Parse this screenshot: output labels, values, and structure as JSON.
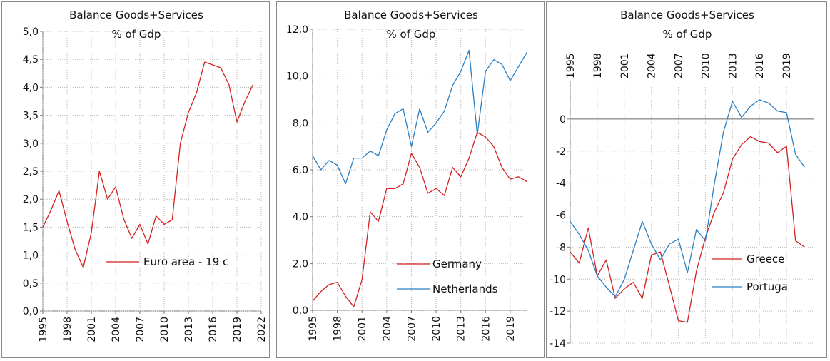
{
  "chart_data": [
    {
      "type": "line",
      "title": "Balance Goods+Services",
      "subtitle": "% of Gdp",
      "xlim": [
        1995,
        2022
      ],
      "ylim": [
        0,
        5
      ],
      "x_ticks": [
        1995,
        1998,
        2001,
        2004,
        2007,
        2010,
        2013,
        2016,
        2019,
        2022
      ],
      "y_ticks": [
        "0,0",
        "0,5",
        "1,0",
        "1,5",
        "2,0",
        "2,5",
        "3,0",
        "3,5",
        "4,0",
        "4,5",
        "5,0"
      ],
      "grid": true,
      "legend": "bottom-right",
      "x": [
        1995,
        1996,
        1997,
        1998,
        1999,
        2000,
        2001,
        2002,
        2003,
        2004,
        2005,
        2006,
        2007,
        2008,
        2009,
        2010,
        2011,
        2012,
        2013,
        2014,
        2015,
        2016,
        2017,
        2018,
        2019,
        2020,
        2021
      ],
      "series": [
        {
          "name": "Euro area - 19 c",
          "color": "#d42020",
          "values": [
            1.5,
            1.8,
            2.15,
            1.6,
            1.1,
            0.78,
            1.4,
            2.5,
            2.0,
            2.22,
            1.65,
            1.3,
            1.55,
            1.2,
            1.7,
            1.55,
            1.63,
            3.0,
            3.55,
            3.9,
            4.45,
            4.4,
            4.35,
            4.05,
            3.38,
            3.75,
            4.05
          ]
        }
      ]
    },
    {
      "type": "line",
      "title": "Balance Goods+Services",
      "subtitle": "% of Gdp",
      "xlim": [
        1995,
        2021
      ],
      "ylim": [
        0,
        12
      ],
      "x_ticks": [
        1995,
        1998,
        2001,
        2004,
        2007,
        2010,
        2013,
        2016,
        2019
      ],
      "y_ticks": [
        "0,0",
        "2,0",
        "4,0",
        "6,0",
        "8,0",
        "10,0",
        "12,0"
      ],
      "grid": true,
      "legend": "bottom-right",
      "x": [
        1995,
        1996,
        1997,
        1998,
        1999,
        2000,
        2001,
        2002,
        2003,
        2004,
        2005,
        2006,
        2007,
        2008,
        2009,
        2010,
        2011,
        2012,
        2013,
        2014,
        2015,
        2016,
        2017,
        2018,
        2019,
        2020,
        2021
      ],
      "series": [
        {
          "name": "Germany",
          "color": "#d42020",
          "values": [
            0.4,
            0.8,
            1.1,
            1.2,
            0.6,
            0.15,
            1.3,
            4.2,
            3.8,
            5.2,
            5.2,
            5.4,
            6.7,
            6.1,
            5.0,
            5.2,
            4.9,
            6.1,
            5.7,
            6.5,
            7.6,
            7.4,
            7.0,
            6.1,
            5.6,
            5.7,
            5.5
          ]
        },
        {
          "name": "Netherlands",
          "color": "#2a7fc4",
          "values": [
            6.6,
            6.0,
            6.4,
            6.2,
            5.4,
            6.5,
            6.5,
            6.8,
            6.6,
            7.7,
            8.4,
            8.6,
            7.0,
            8.6,
            7.6,
            8.0,
            8.5,
            9.6,
            10.2,
            11.1,
            7.5,
            10.2,
            10.7,
            10.5,
            9.8,
            10.4,
            11.0
          ]
        }
      ]
    },
    {
      "type": "line",
      "title": "Balance Goods+Services",
      "subtitle": "% of Gdp",
      "xlim": [
        1995,
        2022
      ],
      "ylim": [
        -14,
        2
      ],
      "x_ticks": [
        1995,
        1998,
        2001,
        2004,
        2007,
        2010,
        2013,
        2016,
        2019
      ],
      "y_ticks": [
        "0",
        "-2",
        "-4",
        "-6",
        "-8",
        "-10",
        "-12",
        "-14"
      ],
      "x_axis_position": "top",
      "grid": true,
      "legend": "bottom-right",
      "x": [
        1995,
        1996,
        1997,
        1998,
        1999,
        2000,
        2001,
        2002,
        2003,
        2004,
        2005,
        2006,
        2007,
        2008,
        2009,
        2010,
        2011,
        2012,
        2013,
        2014,
        2015,
        2016,
        2017,
        2018,
        2019,
        2020,
        2021
      ],
      "series": [
        {
          "name": "Greece",
          "color": "#d42020",
          "values": [
            -8.3,
            -9.0,
            -6.8,
            -9.8,
            -8.8,
            -11.2,
            -10.6,
            -10.2,
            -11.2,
            -8.5,
            -8.3,
            -10.4,
            -12.6,
            -12.7,
            -9.5,
            -7.4,
            -5.8,
            -4.6,
            -2.5,
            -1.6,
            -1.1,
            -1.4,
            -1.5,
            -2.1,
            -1.7,
            -7.6,
            -8.0
          ]
        },
        {
          "name": "Portuga",
          "color": "#2a7fc4",
          "values": [
            -6.4,
            -7.2,
            -8.2,
            -9.8,
            -10.5,
            -11.1,
            -10.0,
            -8.2,
            -6.4,
            -7.8,
            -8.8,
            -7.8,
            -7.5,
            -9.6,
            -6.9,
            -7.6,
            -4.0,
            -0.8,
            1.1,
            0.1,
            0.8,
            1.2,
            1.0,
            0.5,
            0.4,
            -2.2,
            -3.0
          ]
        }
      ]
    }
  ]
}
